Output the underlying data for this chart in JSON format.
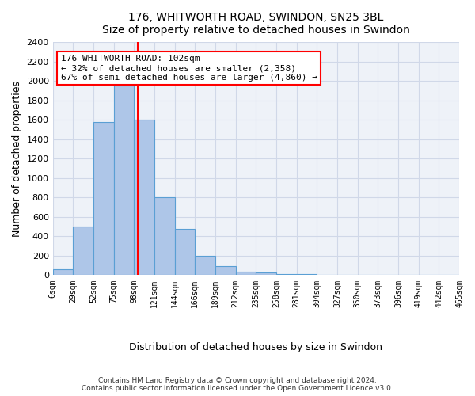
{
  "title": "176, WHITWORTH ROAD, SWINDON, SN25 3BL",
  "subtitle": "Size of property relative to detached houses in Swindon",
  "xlabel": "Distribution of detached houses by size in Swindon",
  "ylabel": "Number of detached properties",
  "bins": [
    6,
    29,
    52,
    75,
    98,
    121,
    144,
    166,
    189,
    212,
    235,
    258,
    281,
    304,
    327,
    350,
    373,
    396,
    419,
    442,
    465
  ],
  "bin_labels": [
    "6sqm",
    "29sqm",
    "52sqm",
    "75sqm",
    "98sqm",
    "121sqm",
    "144sqm",
    "166sqm",
    "189sqm",
    "212sqm",
    "235sqm",
    "258sqm",
    "281sqm",
    "304sqm",
    "327sqm",
    "350sqm",
    "373sqm",
    "396sqm",
    "419sqm",
    "442sqm",
    "465sqm"
  ],
  "values": [
    60,
    500,
    1580,
    1950,
    1600,
    800,
    480,
    200,
    90,
    35,
    25,
    15,
    8,
    5,
    3,
    2,
    1,
    1,
    0,
    0
  ],
  "bar_color": "#aec6e8",
  "bar_edge_color": "#5a9fd4",
  "red_line_x": 102,
  "annotation_text": "176 WHITWORTH ROAD: 102sqm\n← 32% of detached houses are smaller (2,358)\n67% of semi-detached houses are larger (4,860) →",
  "annotation_box_color": "white",
  "annotation_box_edge_color": "red",
  "ylim": [
    0,
    2400
  ],
  "yticks": [
    0,
    200,
    400,
    600,
    800,
    1000,
    1200,
    1400,
    1600,
    1800,
    2000,
    2200,
    2400
  ],
  "grid_color": "#d0d8e8",
  "background_color": "#eef2f8",
  "footer_line1": "Contains HM Land Registry data © Crown copyright and database right 2024.",
  "footer_line2": "Contains public sector information licensed under the Open Government Licence v3.0."
}
